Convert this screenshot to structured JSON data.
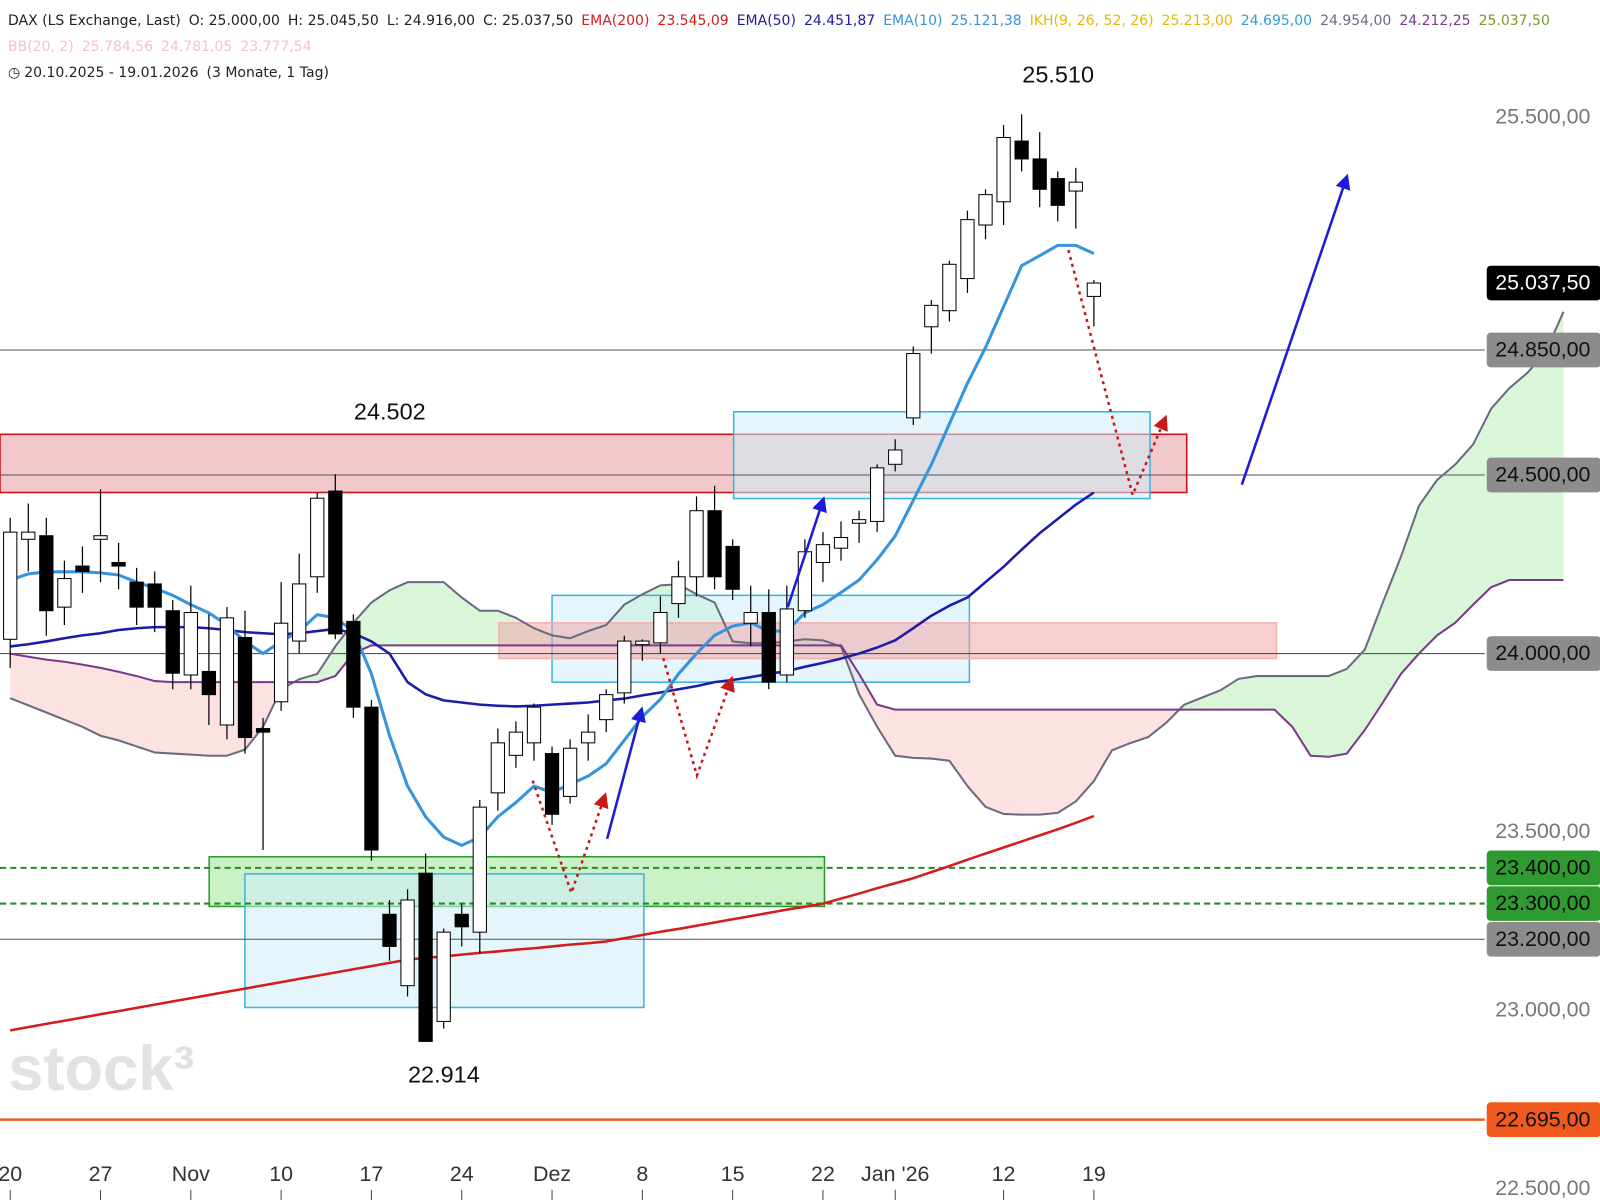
{
  "chart_data": {
    "type": "candlestick",
    "header": {
      "symbol": "DAX (LS Exchange, Last)",
      "ohlc": [
        "O: 25.000,00",
        "H: 25.045,50",
        "L: 24.916,00",
        "C: 25.037,50"
      ],
      "bb_name": "BB(20, 2)",
      "bb_values": [
        "25.784,56",
        "24.781,05",
        "23.777,54"
      ],
      "bb_color": "#f2c4c4",
      "range": "20.10.2025 - 19.01.2026",
      "range_note": "(3 Monate, 1 Tag)"
    },
    "watermark": "stock³",
    "categories": [
      "20",
      null,
      null,
      null,
      null,
      "27",
      null,
      null,
      null,
      null,
      "Nov",
      null,
      null,
      null,
      null,
      "10",
      null,
      null,
      null,
      null,
      "17",
      null,
      null,
      null,
      null,
      "24",
      null,
      null,
      null,
      null,
      "Dez",
      null,
      null,
      null,
      null,
      "8",
      null,
      null,
      null,
      null,
      "15",
      null,
      null,
      null,
      null,
      "22",
      null,
      null,
      null,
      "Jan '26",
      null,
      null,
      null,
      null,
      null,
      "12",
      null,
      null,
      null,
      null,
      "19",
      null,
      null,
      null,
      null,
      null,
      null,
      null,
      null,
      null,
      null,
      null,
      null,
      null,
      null,
      null,
      null,
      null,
      null,
      null,
      null,
      null,
      null,
      null,
      null,
      null,
      null
    ],
    "ylim": [
      22470,
      25830
    ],
    "yticks": [
      {
        "value": 25500,
        "label": "25.500,00"
      },
      {
        "value": 23500,
        "label": "23.500,00"
      },
      {
        "value": 23000,
        "label": "23.000,00"
      },
      {
        "value": 22500,
        "label": "22.500,00"
      }
    ],
    "candles": {
      "up_color": "#ffffff",
      "down_color": "#000000",
      "open": [
        24040,
        24320,
        24330,
        24130,
        24245,
        24320,
        24255,
        24200,
        24195,
        24120,
        23940,
        23950,
        23800,
        24045,
        23790,
        23865,
        24035,
        24215,
        24455,
        24090,
        23850,
        23270,
        23070,
        23385,
        22970,
        23270,
        23220,
        23610,
        23715,
        23750,
        23720,
        23600,
        23750,
        23815,
        23890,
        24025,
        24030,
        24140,
        24215,
        24400,
        24300,
        24085,
        24115,
        23940,
        24120,
        24255,
        24295,
        24365,
        24370,
        24530,
        24660,
        24915,
        24960,
        25050,
        25200,
        25265,
        25435,
        25385,
        25330,
        25295,
        25000,
        null,
        null,
        null,
        null,
        null,
        null,
        null,
        null,
        null,
        null,
        null,
        null,
        null,
        null,
        null,
        null,
        null,
        null,
        null,
        null,
        null,
        null,
        null,
        null,
        null,
        null
      ],
      "high": [
        24380,
        24420,
        24380,
        24260,
        24300,
        24460,
        24310,
        24240,
        24230,
        24150,
        24190,
        24110,
        24130,
        24120,
        23820,
        24200,
        24280,
        24450,
        24502,
        24110,
        23870,
        23310,
        23340,
        23440,
        23230,
        23300,
        23590,
        23790,
        23810,
        23860,
        23740,
        23760,
        23830,
        23900,
        24050,
        24040,
        24160,
        24260,
        24440,
        24470,
        24320,
        24190,
        24180,
        24190,
        24320,
        24340,
        24370,
        24400,
        24530,
        24600,
        24860,
        24990,
        25100,
        25240,
        25300,
        25480,
        25510,
        25460,
        25350,
        25360,
        25045.5,
        null,
        null,
        null,
        null,
        null,
        null,
        null,
        null,
        null,
        null,
        null,
        null,
        null,
        null,
        null,
        null,
        null,
        null,
        null,
        null,
        null,
        null,
        null,
        null,
        null,
        null
      ],
      "low": [
        23960,
        24230,
        24050,
        24080,
        24170,
        24200,
        24180,
        24080,
        24060,
        23900,
        23900,
        23800,
        23760,
        23720,
        23450,
        23840,
        24000,
        24170,
        24040,
        23820,
        23420,
        23140,
        23040,
        22914,
        22950,
        23180,
        23160,
        23560,
        23680,
        23700,
        23520,
        23580,
        23700,
        23780,
        23860,
        23980,
        24000,
        24100,
        24160,
        24180,
        24150,
        24020,
        23900,
        23920,
        24100,
        24200,
        24260,
        24310,
        24340,
        24510,
        24640,
        24840,
        24930,
        25010,
        25160,
        25200,
        25350,
        25250,
        25210,
        25190,
        24916,
        null,
        null,
        null,
        null,
        null,
        null,
        null,
        null,
        null,
        null,
        null,
        null,
        null,
        null,
        null,
        null,
        null,
        null,
        null,
        null,
        null,
        null,
        null,
        null,
        null,
        null
      ],
      "close": [
        24340,
        24340,
        24120,
        24210,
        24230,
        24330,
        24245,
        24130,
        24130,
        23945,
        24115,
        23885,
        24100,
        23765,
        23780,
        24085,
        24195,
        24435,
        24055,
        23850,
        23450,
        23180,
        23310,
        22914,
        23220,
        23235,
        23570,
        23750,
        23780,
        23850,
        23550,
        23735,
        23780,
        23885,
        24035,
        24035,
        24115,
        24215,
        24400,
        24215,
        24180,
        24115,
        23920,
        24125,
        24285,
        24305,
        24325,
        24375,
        24520,
        24570,
        24840,
        24975,
        25090,
        25215,
        25285,
        25445,
        25385,
        25300,
        25255,
        25320,
        25037.5,
        null,
        null,
        null,
        null,
        null,
        null,
        null,
        null,
        null,
        null,
        null,
        null,
        null,
        null,
        null,
        null,
        null,
        null,
        null,
        null,
        null,
        null,
        null,
        null,
        null,
        null
      ]
    },
    "series": [
      {
        "name": "EMA(200)",
        "color": "#d41c1c",
        "legend_value": "23.545,09",
        "values": [
          22945,
          22954,
          22963,
          22972,
          22981,
          22990,
          22999,
          23008,
          23017,
          23026,
          23035,
          23044,
          23053,
          23062,
          23071,
          23080,
          23089,
          23098,
          23107,
          23116,
          23125,
          23134,
          23143,
          23148,
          23152,
          23157,
          23162,
          23166,
          23171,
          23175,
          23180,
          23185,
          23189,
          23194,
          23203,
          23212,
          23221,
          23229,
          23238,
          23247,
          23256,
          23265,
          23274,
          23283,
          23291,
          23300,
          23314,
          23328,
          23343,
          23357,
          23371,
          23388,
          23405,
          23423,
          23440,
          23457,
          23474,
          23491,
          23508,
          23526,
          23545,
          null,
          null,
          null,
          null,
          null,
          null,
          null,
          null,
          null,
          null,
          null,
          null,
          null,
          null,
          null,
          null,
          null,
          null,
          null,
          null,
          null,
          null,
          null,
          null,
          null,
          null
        ]
      },
      {
        "name": "EMA(50)",
        "color": "#1c1ca8",
        "legend_value": "24.451,87",
        "values": [
          24020,
          24026,
          24034,
          24043,
          24051,
          24057,
          24066,
          24071,
          24074,
          24074,
          24074,
          24071,
          24066,
          24060,
          24057,
          24054,
          24057,
          24063,
          24069,
          24057,
          24034,
          24000,
          23920,
          23886,
          23869,
          23863,
          23857,
          23854,
          23852,
          23854,
          23857,
          23860,
          23863,
          23869,
          23874,
          23883,
          23891,
          23900,
          23909,
          23920,
          23926,
          23934,
          23943,
          23951,
          23963,
          23974,
          23986,
          24000,
          24017,
          24037,
          24071,
          24106,
          24134,
          24157,
          24200,
          24243,
          24291,
          24337,
          24377,
          24417,
          24451,
          null,
          null,
          null,
          null,
          null,
          null,
          null,
          null,
          null,
          null,
          null,
          null,
          null,
          null,
          null,
          null,
          null,
          null,
          null,
          null,
          null,
          null,
          null,
          null,
          null,
          null
        ]
      },
      {
        "name": "EMA(10)",
        "color": "#3594dc",
        "legend_value": "25.121,38",
        "values": [
          24206,
          24223,
          24229,
          24229,
          24229,
          24226,
          24220,
          24200,
          24183,
          24163,
          24137,
          24114,
          24080,
          24034,
          24000,
          24034,
          24063,
          24109,
          24100,
          24063,
          23943,
          23771,
          23629,
          23543,
          23486,
          23463,
          23486,
          23543,
          23583,
          23629,
          23611,
          23634,
          23657,
          23692,
          23757,
          23823,
          23872,
          23943,
          24000,
          24051,
          24077,
          24086,
          24063,
          24063,
          24114,
          24137,
          24171,
          24206,
          24263,
          24329,
          24429,
          24529,
          24643,
          24757,
          24857,
          24971,
          25086,
          25114,
          25143,
          25143,
          25120,
          null,
          null,
          null,
          null,
          null,
          null,
          null,
          null,
          null,
          null,
          null,
          null,
          null,
          null,
          null,
          null,
          null,
          null,
          null,
          null,
          null,
          null,
          null,
          null,
          null,
          null
        ]
      }
    ],
    "ichimoku": {
      "name": "IKH(9, 26, 52, 26)",
      "color": "#e6b800",
      "legend_values": [
        {
          "text": "25.213,00",
          "color": "#e6b800"
        },
        {
          "text": "24.695,00",
          "color": "#2f9fd0"
        },
        {
          "text": "24.954,00",
          "color": "#6a6a80"
        },
        {
          "text": "24.212,25",
          "color": "#7a3a8a"
        },
        {
          "text": "25.037,50",
          "color": "#7a9a28"
        }
      ],
      "span_a_color": "#6a6a80",
      "span_b_color": "#7a3a8a",
      "bull_fill": "#d9f6d9",
      "bear_fill": "#fde2e2",
      "span_a": [
        23875,
        23855,
        23835,
        23815,
        23795,
        23770,
        23757,
        23740,
        23723,
        23720,
        23717,
        23714,
        23714,
        23731,
        23795,
        23900,
        23928,
        23943,
        24020,
        24086,
        24143,
        24177,
        24200,
        24200,
        24200,
        24157,
        24120,
        24120,
        24100,
        24071,
        24051,
        24043,
        24063,
        24080,
        24137,
        24166,
        24191,
        24194,
        24166,
        24143,
        24034,
        24029,
        24029,
        24034,
        24040,
        24037,
        24020,
        23886,
        23795,
        23714,
        23708,
        23706,
        23700,
        23629,
        23571,
        23551,
        23549,
        23549,
        23554,
        23586,
        23643,
        23729,
        23749,
        23766,
        23806,
        23857,
        23877,
        23897,
        23929,
        23937,
        23937,
        23937,
        23937,
        23937,
        23957,
        24011,
        24143,
        24271,
        24414,
        24486,
        24529,
        24586,
        24686,
        24743,
        24786,
        24843,
        24957
      ],
      "span_b": [
        24000,
        23991,
        23983,
        23977,
        23969,
        23960,
        23949,
        23937,
        23923,
        23920,
        23920,
        23920,
        23920,
        23920,
        23920,
        23920,
        23920,
        23920,
        23937,
        24000,
        24023,
        24023,
        24023,
        24023,
        24023,
        24023,
        24023,
        24023,
        24023,
        24023,
        24023,
        24023,
        24023,
        24023,
        24023,
        24023,
        24023,
        24023,
        24023,
        24023,
        24023,
        24023,
        24023,
        24023,
        24023,
        24023,
        24023,
        23943,
        23857,
        23843,
        23843,
        23843,
        23843,
        23843,
        23843,
        23843,
        23843,
        23843,
        23843,
        23843,
        23843,
        23843,
        23843,
        23843,
        23843,
        23843,
        23843,
        23843,
        23843,
        23843,
        23843,
        23794,
        23714,
        23711,
        23720,
        23786,
        23863,
        23943,
        24000,
        24051,
        24086,
        24137,
        24186,
        24206,
        24206,
        24206,
        24206
      ]
    },
    "zones": [
      {
        "high": 24614,
        "low": 24451,
        "fill": "#e89aa0",
        "stroke": "#c8101a"
      },
      {
        "high": 24677,
        "low": 24434,
        "fill": "#cdeefa",
        "stroke": "#3ab4dc"
      },
      {
        "high": 24163,
        "low": 23920,
        "fill": "#cdeefa",
        "stroke": "#3ab4dc"
      },
      {
        "high": 24086,
        "low": 23986,
        "fill": "#f2a8a8",
        "stroke": "#f2b0b0"
      },
      {
        "high": 23431,
        "low": 23292,
        "fill": "#9ee496",
        "stroke": "#2a9a2a"
      },
      {
        "high": 23383,
        "low": 23009,
        "fill": "#cdeefa",
        "stroke": "#3ab4dc"
      }
    ],
    "levels": [
      {
        "value": 25037.5,
        "label": "25.037,50",
        "fill": "#000000",
        "text_color": "#ffffff",
        "line": null,
        "line_color": null
      },
      {
        "value": 24850,
        "label": "24.850,00",
        "fill": "#8c8c8c",
        "text_color": "#111111",
        "line": "solid",
        "line_color": "#555555"
      },
      {
        "value": 24500,
        "label": "24.500,00",
        "fill": "#8c8c8c",
        "text_color": "#111111",
        "line": "solid",
        "line_color": "#555555"
      },
      {
        "value": 24000,
        "label": "24.000,00",
        "fill": "#8c8c8c",
        "text_color": "#111111",
        "line": "solid",
        "line_color": "#555555"
      },
      {
        "value": 23400,
        "label": "23.400,00",
        "fill": "#2f9a2f",
        "text_color": "#0a0a0a",
        "line": "dashed",
        "line_color": "#2a8a2a"
      },
      {
        "value": 23300,
        "label": "23.300,00",
        "fill": "#2f9a2f",
        "text_color": "#0a0a0a",
        "line": "dashed",
        "line_color": "#2a8a2a"
      },
      {
        "value": 23200,
        "label": "23.200,00",
        "fill": "#8c8c8c",
        "text_color": "#111111",
        "line": "solid",
        "line_color": "#555555"
      },
      {
        "value": 22695,
        "label": "22.695,00",
        "fill": "#f05a1e",
        "text_color": "#111111",
        "line": "solid",
        "line_color": "#f05a1e"
      }
    ],
    "annotations": [
      {
        "value": 25510,
        "label": "25.510"
      },
      {
        "value": 24502,
        "label": "24.502"
      },
      {
        "value": 22914,
        "label": "22.914"
      }
    ]
  }
}
